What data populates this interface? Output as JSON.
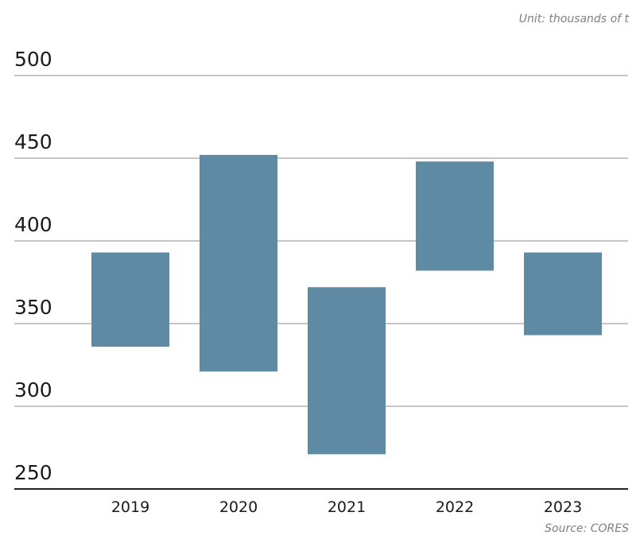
{
  "unit_note": "Unit: thousands of t",
  "source_note": "Source: CORES",
  "colors": {
    "bar": "#5e8aa3",
    "grid": "#8c8c8c",
    "axis": "#222222",
    "text": "#1a1a1a",
    "note": "#7f7f7f"
  },
  "chart_data": {
    "type": "bar",
    "subtype": "floating",
    "title": "",
    "xlabel": "",
    "ylabel": "",
    "categories": [
      "2019",
      "2020",
      "2021",
      "2022",
      "2023"
    ],
    "ranges": [
      {
        "low": 336,
        "high": 393
      },
      {
        "low": 321,
        "high": 452
      },
      {
        "low": 271,
        "high": 372
      },
      {
        "low": 382,
        "high": 448
      },
      {
        "low": 343,
        "high": 393
      }
    ],
    "ylim": [
      250,
      500
    ],
    "yticks": [
      250,
      300,
      350,
      400,
      450,
      500
    ],
    "grid": true,
    "legend": false
  }
}
